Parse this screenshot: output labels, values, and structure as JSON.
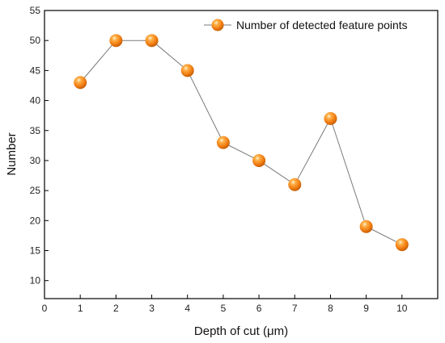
{
  "chart_data": {
    "type": "line",
    "xlabel": "Depth of cut (μm)",
    "ylabel": "Number",
    "xlim": [
      0,
      11
    ],
    "ylim": [
      7,
      55
    ],
    "x_ticks": [
      "0",
      "1",
      "2",
      "3",
      "4",
      "5",
      "6",
      "7",
      "8",
      "9",
      "10"
    ],
    "y_ticks": [
      "10",
      "15",
      "20",
      "25",
      "30",
      "35",
      "40",
      "45",
      "50",
      "55"
    ],
    "grid": false,
    "legend_position": "top-right",
    "series": [
      {
        "name": "Number of detected feature points",
        "x": [
          1,
          2,
          3,
          4,
          5,
          6,
          7,
          8,
          9,
          10
        ],
        "y": [
          43,
          50,
          50,
          45,
          33,
          30,
          26,
          37,
          19,
          16
        ],
        "marker": "sphere",
        "color": "#f07b10",
        "line_color": "#7a7a7a"
      }
    ]
  }
}
